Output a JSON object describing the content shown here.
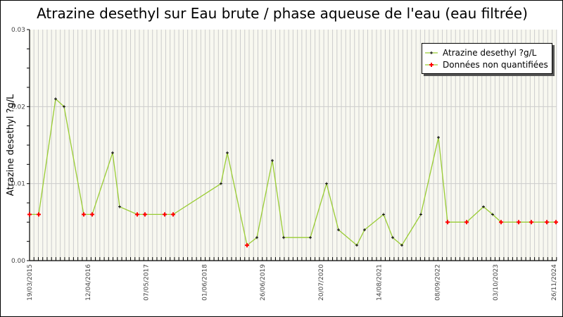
{
  "title": "Atrazine desethyl sur Eau brute / phase aqueuse de l'eau (eau filtrée)",
  "legend": {
    "series_label": "Atrazine desethyl ?g/L",
    "nonquant_label": "Données non quantifiées"
  },
  "colors": {
    "line": "#99cc33",
    "marker": "#000000",
    "nonquant": "#ff0000",
    "plot_bg": "#f8f8f0",
    "grid": "#cccccc"
  },
  "chart_data": {
    "type": "line",
    "title": "Atrazine desethyl sur Eau brute / phase aqueuse de l'eau (eau filtrée)",
    "xlabel": "",
    "ylabel": "Atrazine desethyl ?g/L",
    "ylim": [
      0,
      0.03
    ],
    "yticks": [
      "0.00",
      "0.01",
      "0.02",
      "0.03"
    ],
    "xticks": [
      "19/03/2015",
      "12/04/2016",
      "07/05/2017",
      "01/06/2018",
      "26/06/2019",
      "20/07/2020",
      "14/08/2021",
      "08/09/2022",
      "03/10/2023",
      "26/11/2024"
    ],
    "grid": true,
    "legend_position": "top-right",
    "series": [
      {
        "name": "Atrazine desethyl ?g/L",
        "points": [
          {
            "px": 41,
            "value": 0.006,
            "nonquant": true
          },
          {
            "px": 54,
            "value": 0.006,
            "nonquant": true
          },
          {
            "px": 78,
            "value": 0.021,
            "nonquant": false
          },
          {
            "px": 90,
            "value": 0.02,
            "nonquant": false
          },
          {
            "px": 118,
            "value": 0.006,
            "nonquant": true
          },
          {
            "px": 130,
            "value": 0.006,
            "nonquant": true
          },
          {
            "px": 159,
            "value": 0.014,
            "nonquant": false
          },
          {
            "px": 169,
            "value": 0.007,
            "nonquant": false
          },
          {
            "px": 194,
            "value": 0.006,
            "nonquant": true
          },
          {
            "px": 205,
            "value": 0.006,
            "nonquant": true
          },
          {
            "px": 233,
            "value": 0.006,
            "nonquant": true
          },
          {
            "px": 245,
            "value": 0.006,
            "nonquant": true
          },
          {
            "px": 313,
            "value": 0.01,
            "nonquant": false
          },
          {
            "px": 322,
            "value": 0.014,
            "nonquant": false
          },
          {
            "px": 350,
            "value": 0.002,
            "nonquant": true
          },
          {
            "px": 364,
            "value": 0.003,
            "nonquant": false
          },
          {
            "px": 386,
            "value": 0.013,
            "nonquant": false
          },
          {
            "px": 402,
            "value": 0.003,
            "nonquant": false
          },
          {
            "px": 440,
            "value": 0.003,
            "nonquant": false
          },
          {
            "px": 463,
            "value": 0.01,
            "nonquant": false
          },
          {
            "px": 480,
            "value": 0.004,
            "nonquant": false
          },
          {
            "px": 506,
            "value": 0.002,
            "nonquant": false
          },
          {
            "px": 517,
            "value": 0.004,
            "nonquant": false
          },
          {
            "px": 544,
            "value": 0.006,
            "nonquant": false
          },
          {
            "px": 557,
            "value": 0.003,
            "nonquant": false
          },
          {
            "px": 570,
            "value": 0.002,
            "nonquant": false
          },
          {
            "px": 597,
            "value": 0.006,
            "nonquant": false
          },
          {
            "px": 622,
            "value": 0.016,
            "nonquant": false
          },
          {
            "px": 635,
            "value": 0.005,
            "nonquant": true
          },
          {
            "px": 662,
            "value": 0.005,
            "nonquant": true
          },
          {
            "px": 686,
            "value": 0.007,
            "nonquant": false
          },
          {
            "px": 699,
            "value": 0.006,
            "nonquant": false
          },
          {
            "px": 711,
            "value": 0.005,
            "nonquant": true
          },
          {
            "px": 736,
            "value": 0.005,
            "nonquant": true
          },
          {
            "px": 754,
            "value": 0.005,
            "nonquant": true
          },
          {
            "px": 776,
            "value": 0.005,
            "nonquant": true
          },
          {
            "px": 789,
            "value": 0.005,
            "nonquant": true
          }
        ]
      }
    ]
  }
}
